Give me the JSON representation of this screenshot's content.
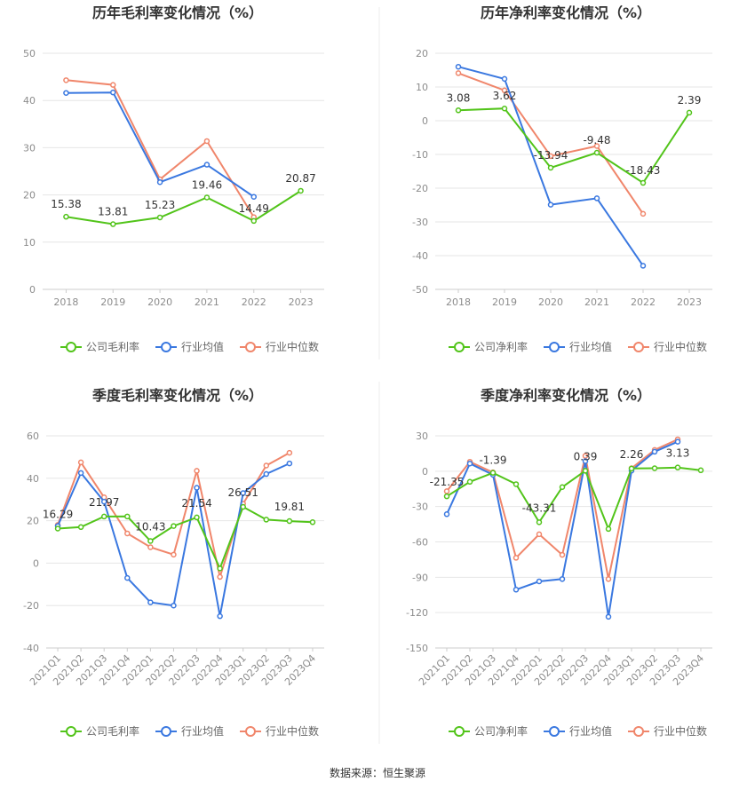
{
  "colors": {
    "company": "#52c41a",
    "avg": "#3a78e0",
    "median": "#f0866b",
    "grid": "#e6e6e6",
    "axis_text": "#8c8c8c",
    "title": "#333333"
  },
  "source": {
    "label": "数据来源：",
    "name": "恒生聚源"
  },
  "chart_data": [
    {
      "type": "line",
      "title": "历年毛利率变化情况（%）",
      "categories": [
        "2018",
        "2019",
        "2020",
        "2021",
        "2022",
        "2023"
      ],
      "ylim": [
        0,
        50
      ],
      "yticks": [
        0,
        10,
        20,
        30,
        40,
        50
      ],
      "grid": true,
      "legend_position": "bottom",
      "series": [
        {
          "name": "公司毛利率",
          "key": "company",
          "values": [
            15.38,
            13.81,
            15.23,
            19.46,
            14.49,
            20.87
          ],
          "labels": [
            "15.38",
            "13.81",
            "15.23",
            "19.46",
            "14.49",
            "20.87"
          ]
        },
        {
          "name": "行业均值",
          "key": "avg",
          "values": [
            41.6,
            41.7,
            22.7,
            26.4,
            19.6,
            null
          ]
        },
        {
          "name": "行业中位数",
          "key": "median",
          "values": [
            44.3,
            43.3,
            23.3,
            31.4,
            15.3,
            null
          ]
        }
      ]
    },
    {
      "type": "line",
      "title": "历年净利率变化情况（%）",
      "categories": [
        "2018",
        "2019",
        "2020",
        "2021",
        "2022",
        "2023"
      ],
      "ylim": [
        -50,
        20
      ],
      "yticks": [
        -50,
        -40,
        -30,
        -20,
        -10,
        0,
        10,
        20
      ],
      "grid": true,
      "legend_position": "bottom",
      "series": [
        {
          "name": "公司净利率",
          "key": "company",
          "values": [
            3.08,
            3.62,
            -13.94,
            -9.48,
            -18.43,
            2.39
          ],
          "labels": [
            "3.08",
            "3.62",
            "-13.94",
            "-9.48",
            "-18.43",
            "2.39"
          ]
        },
        {
          "name": "行业均值",
          "key": "avg",
          "values": [
            16.0,
            12.4,
            -24.9,
            -23.0,
            -43.0,
            null
          ]
        },
        {
          "name": "行业中位数",
          "key": "median",
          "values": [
            14.1,
            9.0,
            -10.5,
            -7.5,
            -27.6,
            null
          ]
        }
      ]
    },
    {
      "type": "line",
      "title": "季度毛利率变化情况（%）",
      "categories": [
        "2021Q1",
        "2021Q2",
        "2021Q3",
        "2021Q4",
        "2022Q1",
        "2022Q2",
        "2022Q3",
        "2022Q4",
        "2023Q1",
        "2023Q2",
        "2023Q3",
        "2023Q4"
      ],
      "ylim": [
        -40,
        60
      ],
      "yticks": [
        -40,
        -20,
        0,
        20,
        40,
        60
      ],
      "grid": true,
      "legend_position": "bottom",
      "series": [
        {
          "name": "公司毛利率",
          "key": "company",
          "values": [
            16.29,
            17.0,
            21.97,
            22.0,
            10.43,
            17.5,
            21.54,
            -2.5,
            26.51,
            20.5,
            19.81,
            19.3
          ],
          "labels": [
            "16.29",
            "",
            "21.97",
            "",
            "10.43",
            "",
            "21.54",
            "",
            "26.51",
            "",
            "19.81",
            ""
          ]
        },
        {
          "name": "行业均值",
          "key": "avg",
          "values": [
            17.5,
            42.5,
            29.0,
            -7.0,
            -18.5,
            -20.0,
            35.5,
            -25.0,
            33.0,
            42.0,
            47.0,
            null
          ]
        },
        {
          "name": "行业中位数",
          "key": "median",
          "values": [
            18.0,
            47.5,
            31.0,
            14.0,
            7.5,
            4.0,
            43.5,
            -6.5,
            28.0,
            46.0,
            52.0,
            null
          ]
        }
      ]
    },
    {
      "type": "line",
      "title": "季度净利率变化情况（%）",
      "categories": [
        "2021Q1",
        "2021Q2",
        "2021Q3",
        "2021Q4",
        "2022Q1",
        "2022Q2",
        "2022Q3",
        "2022Q4",
        "2023Q1",
        "2023Q2",
        "2023Q3",
        "2023Q4"
      ],
      "ylim": [
        -150,
        30
      ],
      "yticks": [
        -150,
        -120,
        -90,
        -60,
        -30,
        0,
        30
      ],
      "grid": true,
      "legend_position": "bottom",
      "series": [
        {
          "name": "公司净利率",
          "key": "company",
          "values": [
            -21.35,
            -9.0,
            -1.39,
            -11.0,
            -43.31,
            -13.5,
            0.39,
            -49.0,
            2.26,
            2.5,
            3.13,
            0.8
          ],
          "labels": [
            "-21.35",
            "",
            "-1.39",
            "",
            "-43.31",
            "",
            "0.39",
            "",
            "2.26",
            "",
            "3.13",
            ""
          ]
        },
        {
          "name": "行业均值",
          "key": "avg",
          "values": [
            -36.5,
            6.5,
            -3.0,
            -100.5,
            -93.5,
            -91.5,
            8.5,
            -123.5,
            0.5,
            16.5,
            25.0,
            null
          ]
        },
        {
          "name": "行业中位数",
          "key": "median",
          "values": [
            -17.0,
            8.0,
            -1.0,
            -73.5,
            -53.5,
            -71.0,
            13.0,
            -91.5,
            2.5,
            18.0,
            27.0,
            null
          ]
        }
      ]
    }
  ]
}
